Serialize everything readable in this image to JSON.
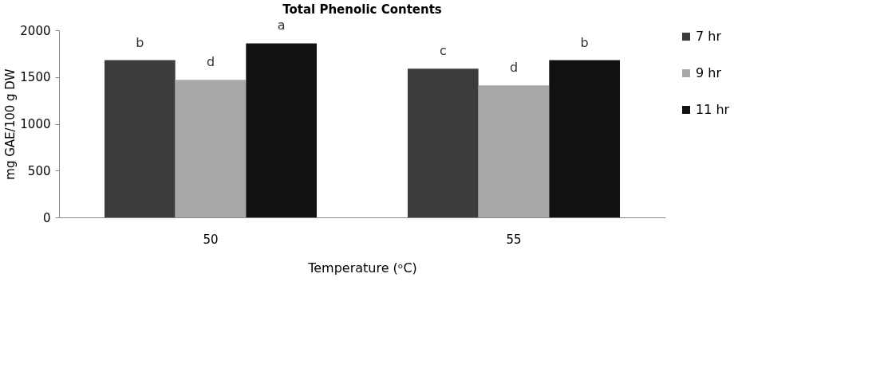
{
  "chart_data": {
    "type": "bar",
    "title": "Total Phenolic Contents",
    "xlabel": "Temperature (ᵒC)",
    "ylabel": "mg GAE/100 g DW",
    "categories": [
      "50",
      "55"
    ],
    "series": [
      {
        "name": "7 hr",
        "color": "#3c3c3c",
        "values": [
          1680,
          1590
        ],
        "value_labels": [
          "b",
          "c"
        ]
      },
      {
        "name": "9 hr",
        "color": "#a8a8a8",
        "values": [
          1470,
          1410
        ],
        "value_labels": [
          "d",
          "d"
        ]
      },
      {
        "name": "11 hr",
        "color": "#111111",
        "values": [
          1860,
          1680
        ],
        "value_labels": [
          "a",
          "b"
        ]
      }
    ],
    "ylim": [
      0,
      2000
    ],
    "yticks": [
      0,
      500,
      1000,
      1500,
      2000
    ],
    "grid": false,
    "legend": "right"
  }
}
